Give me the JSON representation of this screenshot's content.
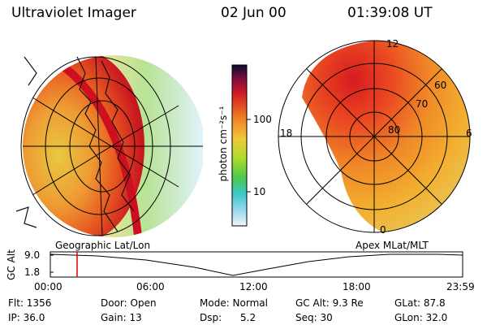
{
  "header": {
    "title": "Ultraviolet Imager",
    "date": "02 Jun 00",
    "time": "01:39:08 UT"
  },
  "colorbar": {
    "unit_label": "photon cm⁻²s⁻¹",
    "ticks": [
      "100",
      "10"
    ]
  },
  "polar_plot": {
    "lat_labels": [
      "80",
      "70",
      "60"
    ],
    "mlt_labels": [
      "12",
      "18",
      "6",
      "0"
    ]
  },
  "timeline": {
    "left_caption": "Geographic Lat/Lon",
    "right_caption": "Apex MLat/MLT",
    "y_label": "GC Alt",
    "y_ticks": [
      "9.0",
      "1.8"
    ],
    "x_ticks": [
      "00:00",
      "06:00",
      "12:00",
      "18:00",
      "23:59"
    ],
    "cursor_time": "01:39",
    "cursor_color": "#dd0000"
  },
  "footer": {
    "flt": "Flt: 1356",
    "ip": "IP: 36.0",
    "door": "Door: Open",
    "gain": "Gain: 13",
    "mode": "Mode: Normal",
    "dsp": "Dsp:      5.2",
    "gc_alt": "GC Alt: 9.3 Re",
    "seq": "Seq: 30",
    "glat": "GLat: 87.8",
    "glon": "GLon: 32.0"
  }
}
